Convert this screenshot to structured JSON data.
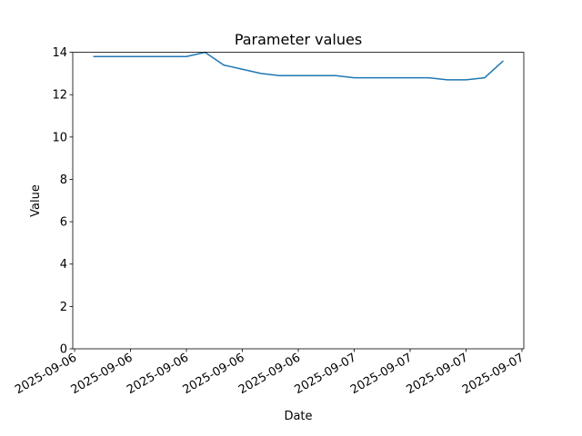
{
  "chart_data": {
    "type": "line",
    "title": "Parameter values",
    "x_label": "Date",
    "y_label": "Value",
    "x": [
      2,
      4,
      6,
      8,
      10,
      12,
      14,
      16,
      18,
      20,
      22,
      24,
      26,
      28,
      30,
      32,
      34,
      36,
      38,
      40,
      42,
      44,
      46
    ],
    "values": [
      13.8,
      13.8,
      13.8,
      13.8,
      13.8,
      13.8,
      14.0,
      13.4,
      13.2,
      13.0,
      12.9,
      12.9,
      12.9,
      12.9,
      12.8,
      12.8,
      12.8,
      12.8,
      12.8,
      12.7,
      12.7,
      12.8,
      13.6
    ],
    "color": "#1f77b4",
    "xlim": [
      -0.2,
      48.2
    ],
    "xticks": [
      {
        "value": 0,
        "label": "2025-09-06"
      },
      {
        "value": 6,
        "label": "2025-09-06"
      },
      {
        "value": 12,
        "label": "2025-09-06"
      },
      {
        "value": 18,
        "label": "2025-09-06"
      },
      {
        "value": 24,
        "label": "2025-09-06"
      },
      {
        "value": 30,
        "label": "2025-09-07"
      },
      {
        "value": 36,
        "label": "2025-09-07"
      },
      {
        "value": 42,
        "label": "2025-09-07"
      },
      {
        "value": 48,
        "label": "2025-09-07"
      }
    ],
    "ylim": [
      0,
      14
    ],
    "yticks": [
      0,
      2,
      4,
      6,
      8,
      10,
      12,
      14
    ],
    "grid": false
  }
}
